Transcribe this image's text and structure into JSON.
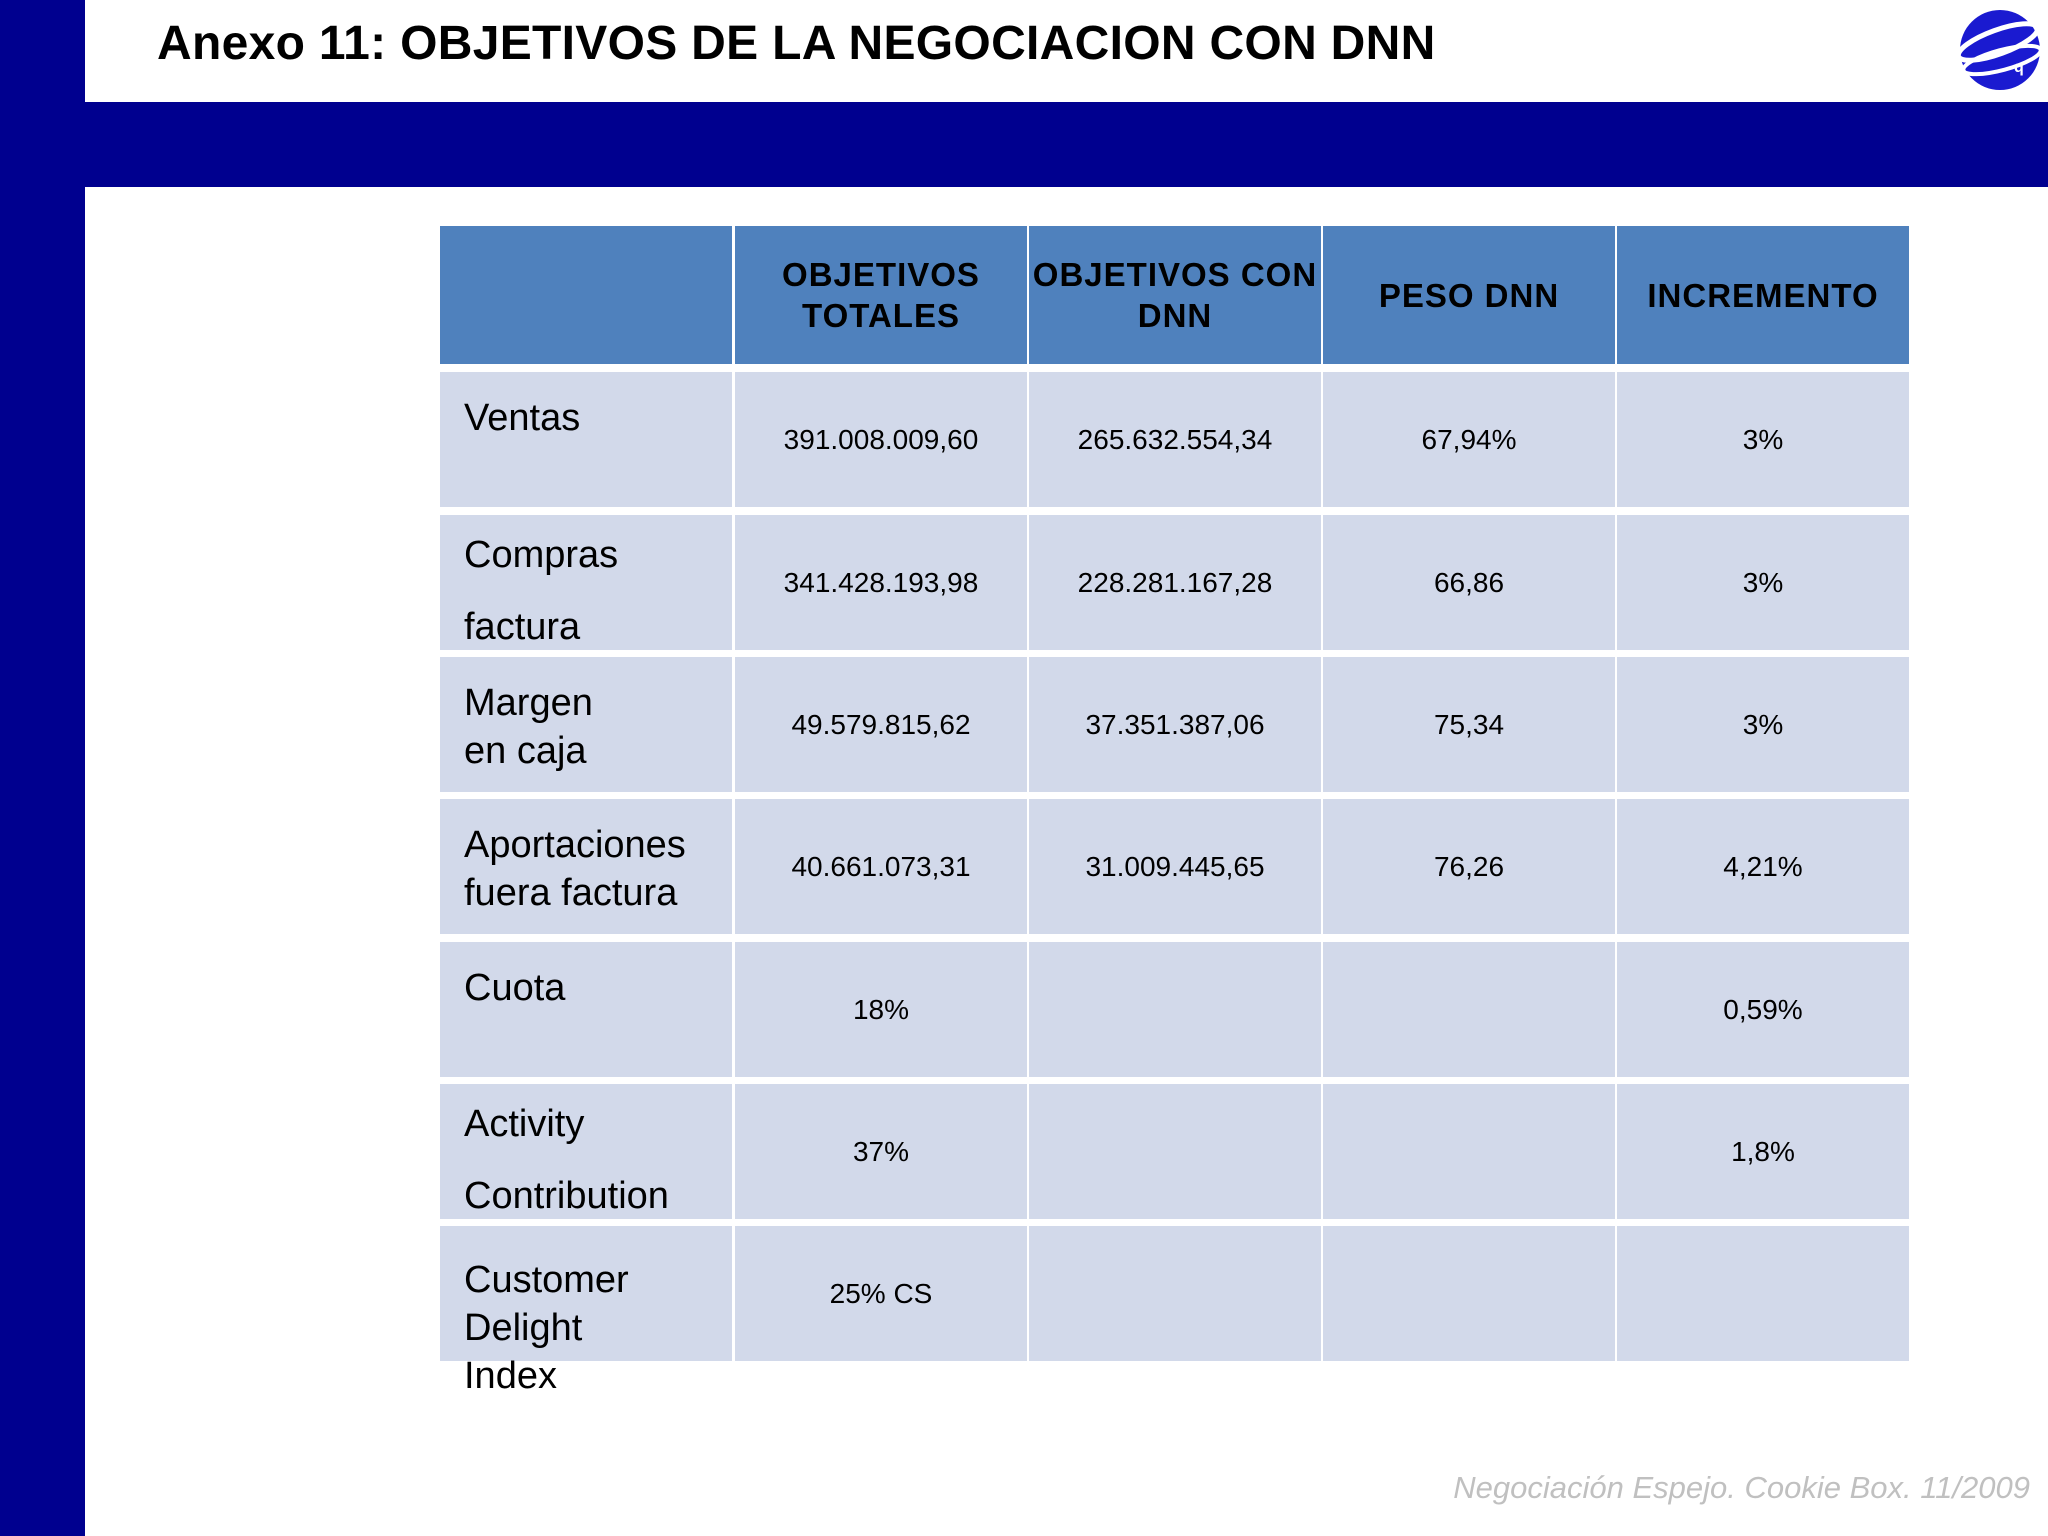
{
  "page": {
    "title": "Anexo 11: OBJETIVOS DE LA NEGOCIACION CON DNN",
    "footer": "Negociación Espejo. Cookie Box. 11/2009",
    "colors": {
      "dark_blue": "#00008f",
      "header_blue": "#4f81bd",
      "cell_fill": "#d2d9ea"
    },
    "logo_icon": "globe-logo-icon"
  },
  "table": {
    "headers": [
      "",
      "OBJETIVOS TOTALES",
      "OBJETIVOS CON DNN",
      "PESO DNN",
      "INCREMENTO"
    ],
    "rows": [
      {
        "label": "Ventas",
        "cells": [
          "391.008.009,60",
          "265.632.554,34",
          "67,94%",
          "3%"
        ]
      },
      {
        "label": "Compras\n\nfactura",
        "cells": [
          "341.428.193,98",
          "228.281.167,28",
          "66,86",
          "3%"
        ]
      },
      {
        "label": "Margen\nen caja",
        "cells": [
          "49.579.815,62",
          "37.351.387,06",
          "75,34",
          "3%"
        ]
      },
      {
        "label": "Aportaciones\nfuera factura",
        "cells": [
          "40.661.073,31",
          "31.009.445,65",
          "76,26",
          "4,21%"
        ]
      },
      {
        "label": "Cuota",
        "cells": [
          "18%",
          "",
          "",
          "0,59%"
        ]
      },
      {
        "label": "Activity\n\nContribution",
        "cells": [
          "37%",
          "",
          "",
          "1,8%"
        ]
      },
      {
        "label": "Customer\nDelight\nIndex",
        "cells": [
          "25% CS",
          "",
          "",
          ""
        ]
      }
    ]
  }
}
